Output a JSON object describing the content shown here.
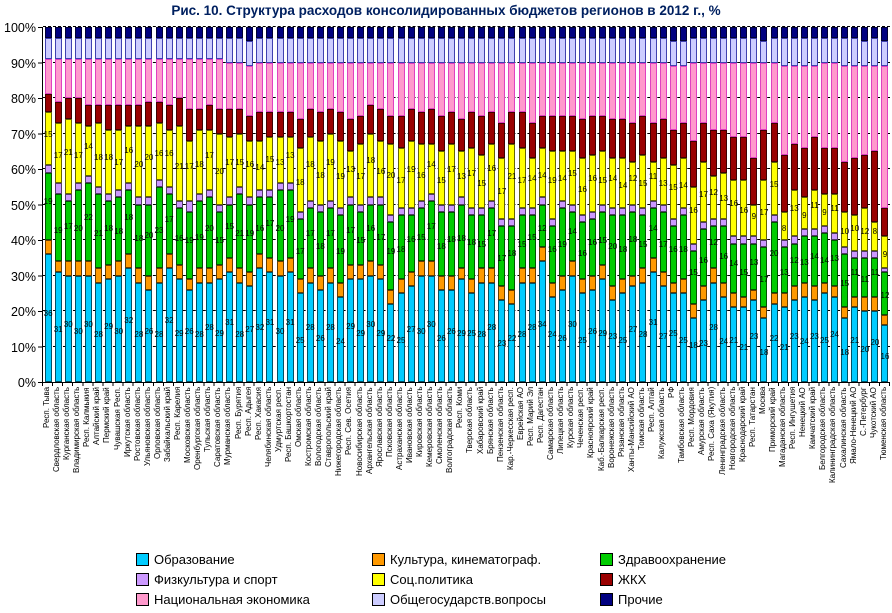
{
  "title": "Рис. 10. Структура расходов консолидированных бюджетов регионов в 2012 г., %",
  "y_axis": {
    "ticks": [
      "0%",
      "10%",
      "20%",
      "30%",
      "40%",
      "50%",
      "60%",
      "70%",
      "80%",
      "90%",
      "100%"
    ]
  },
  "legend": [
    {
      "label": "Образование",
      "color": "#00CCFF"
    },
    {
      "label": "Культура, кинематограф.",
      "color": "#FF9900"
    },
    {
      "label": "Здравоохранение",
      "color": "#00CC00"
    },
    {
      "label": "Физкультура и спорт",
      "color": "#CC99FF"
    },
    {
      "label": "Соц.политика",
      "color": "#FFFF00"
    },
    {
      "label": "ЖКХ",
      "color": "#990000"
    },
    {
      "label": "Национальная экономика",
      "color": "#FF99CC"
    },
    {
      "label": "Общегосударств.вопросы",
      "color": "#CCCCFF"
    },
    {
      "label": "Прочие",
      "color": "#000080"
    }
  ],
  "chart_data": {
    "type": "bar",
    "stacked": true,
    "unit": "%",
    "ylim": [
      0,
      100
    ],
    "grid": true,
    "legend_position": "bottom",
    "title": "Рис. 10. Структура расходов консолидированных бюджетов регионов в 2012 г., %",
    "series_names": [
      "Образование",
      "Культура, кинематограф.",
      "Здравоохранение",
      "Физкультура и спорт",
      "Соц.политика",
      "ЖКХ",
      "Национальная экономика",
      "Общегосударств.вопросы",
      "Прочие"
    ],
    "series_colors": [
      "#00CCFF",
      "#FF9900",
      "#00CC00",
      "#CC99FF",
      "#FFFF00",
      "#990000",
      "#FF99CC",
      "#CCCCFF",
      "#000080"
    ],
    "label_series_indexes": [
      0,
      2,
      4
    ],
    "categories": [
      "Респ. Тыва",
      "Свердловская область",
      "Курганская область",
      "Владимирская область",
      "Респ. Калмыкия",
      "Алтайский край",
      "Пермский край",
      "Чувашская Респ.",
      "Иркутская область",
      "Ростовская область",
      "Ульяновская область",
      "Орловская область",
      "Забайкальский край",
      "Респ. Карелия",
      "Московская область",
      "Оренбургская область",
      "Тульская область",
      "Саратовская область",
      "Мурманская область",
      "Респ. Бурятия",
      "Респ. Адыгея",
      "Респ. Хакасия",
      "Челябинская область",
      "Удмуртская респ.",
      "Респ. Башкортостан",
      "Омская область",
      "Костромская область",
      "Вологодская область",
      "Ставропольский край",
      "Нижегородская область",
      "Респ. Сев. Осетия",
      "Новосибирская область",
      "Архангельская область",
      "Ярославская область",
      "Псковская область",
      "Астраханская область",
      "Ивановская область",
      "Кировская область",
      "Кемеровская область",
      "Смоленская область",
      "Волгоградская область",
      "Респ. Коми",
      "Тверская область",
      "Хабаровский край",
      "Брянская область",
      "Пензенская область",
      "Кар.-Черкесская респ.",
      "Еврейская АО",
      "Респ. Марий Эл",
      "Респ. Дагестан",
      "Самарская область",
      "Липецкая область",
      "Курская область",
      "Чеченская респ.",
      "Красноярский край",
      "Каб.-Балкарская респ.",
      "Воронежская область",
      "Рязанская область",
      "Ханты-Мансийский АО",
      "Томская область",
      "Респ. Алтай",
      "Калужская область",
      "РФ",
      "Тамбовская область",
      "Респ. Мордовия",
      "Амурская область",
      "Респ. Саха (Якутия)",
      "Ленинградская область",
      "Новгородская область",
      "Краснодарский край",
      "Респ. Татарстан",
      "Москва",
      "Приморский край",
      "Магаданская область",
      "Респ. Ингушетия",
      "Ненецкий АО",
      "Камчатский край",
      "Белгородская область",
      "Калининградская область",
      "Сахалинская область",
      "Ямало-Ненецкий АО",
      "С.-Петербург",
      "Чукотский АО",
      "Тюменская область"
    ],
    "values": [
      [
        36,
        4,
        19,
        2,
        15,
        5,
        10,
        6,
        3
      ],
      [
        31,
        3,
        19,
        3,
        17,
        6,
        12,
        6,
        3
      ],
      [
        30,
        4,
        17,
        2,
        21,
        6,
        11,
        6,
        3
      ],
      [
        30,
        4,
        20,
        2,
        17,
        7,
        11,
        6,
        3
      ],
      [
        30,
        4,
        22,
        2,
        14,
        6,
        13,
        6,
        3
      ],
      [
        28,
        4,
        21,
        2,
        18,
        5,
        13,
        6,
        3
      ],
      [
        29,
        4,
        18,
        2,
        18,
        7,
        13,
        6,
        3
      ],
      [
        30,
        4,
        18,
        2,
        17,
        7,
        13,
        6,
        3
      ],
      [
        32,
        4,
        18,
        2,
        16,
        6,
        13,
        6,
        3
      ],
      [
        28,
        4,
        18,
        2,
        20,
        6,
        13,
        6,
        3
      ],
      [
        26,
        4,
        20,
        2,
        20,
        7,
        12,
        6,
        3
      ],
      [
        28,
        4,
        23,
        2,
        16,
        6,
        12,
        6,
        3
      ],
      [
        32,
        4,
        17,
        2,
        16,
        7,
        13,
        6,
        3
      ],
      [
        29,
        4,
        16,
        2,
        21,
        8,
        11,
        6,
        3
      ],
      [
        26,
        3,
        19,
        3,
        17,
        9,
        14,
        6,
        3
      ],
      [
        28,
        4,
        19,
        2,
        18,
        6,
        14,
        6,
        3
      ],
      [
        28,
        4,
        20,
        2,
        17,
        7,
        13,
        6,
        3
      ],
      [
        29,
        4,
        15,
        2,
        20,
        7,
        14,
        6,
        3
      ],
      [
        31,
        4,
        15,
        2,
        17,
        8,
        13,
        7,
        3
      ],
      [
        28,
        4,
        21,
        2,
        15,
        7,
        13,
        7,
        3
      ],
      [
        27,
        4,
        19,
        2,
        16,
        7,
        14,
        7,
        4
      ],
      [
        32,
        4,
        16,
        2,
        14,
        8,
        14,
        7,
        3
      ],
      [
        31,
        4,
        17,
        2,
        15,
        7,
        14,
        7,
        3
      ],
      [
        30,
        4,
        20,
        2,
        13,
        7,
        14,
        7,
        3
      ],
      [
        31,
        4,
        19,
        2,
        13,
        7,
        14,
        7,
        3
      ],
      [
        25,
        4,
        17,
        2,
        18,
        8,
        16,
        7,
        3
      ],
      [
        28,
        4,
        17,
        2,
        18,
        8,
        13,
        7,
        3
      ],
      [
        26,
        4,
        18,
        2,
        18,
        8,
        14,
        7,
        3
      ],
      [
        28,
        4,
        17,
        2,
        19,
        7,
        13,
        7,
        3
      ],
      [
        24,
        4,
        19,
        2,
        19,
        8,
        14,
        7,
        3
      ],
      [
        29,
        4,
        17,
        2,
        13,
        9,
        16,
        7,
        3
      ],
      [
        29,
        4,
        15,
        2,
        17,
        8,
        15,
        7,
        3
      ],
      [
        30,
        4,
        16,
        2,
        18,
        8,
        12,
        7,
        3
      ],
      [
        29,
        4,
        17,
        2,
        16,
        9,
        13,
        7,
        3
      ],
      [
        22,
        4,
        19,
        2,
        20,
        8,
        15,
        7,
        3
      ],
      [
        25,
        4,
        18,
        2,
        17,
        9,
        15,
        7,
        3
      ],
      [
        27,
        4,
        16,
        2,
        19,
        9,
        13,
        7,
        3
      ],
      [
        30,
        4,
        15,
        2,
        16,
        9,
        14,
        7,
        3
      ],
      [
        30,
        4,
        17,
        2,
        14,
        10,
        13,
        7,
        3
      ],
      [
        26,
        4,
        18,
        2,
        15,
        10,
        15,
        7,
        3
      ],
      [
        26,
        4,
        18,
        2,
        17,
        9,
        14,
        7,
        3
      ],
      [
        29,
        3,
        18,
        2,
        13,
        9,
        16,
        7,
        3
      ],
      [
        25,
        4,
        18,
        2,
        17,
        10,
        14,
        7,
        3
      ],
      [
        28,
        4,
        15,
        2,
        15,
        11,
        15,
        7,
        3
      ],
      [
        28,
        4,
        17,
        2,
        16,
        9,
        14,
        7,
        3
      ],
      [
        23,
        4,
        17,
        2,
        17,
        10,
        17,
        7,
        3
      ],
      [
        22,
        4,
        18,
        2,
        21,
        9,
        14,
        7,
        3
      ],
      [
        28,
        4,
        15,
        2,
        17,
        10,
        14,
        7,
        3
      ],
      [
        28,
        4,
        15,
        2,
        14,
        10,
        17,
        7,
        3
      ],
      [
        34,
        4,
        12,
        2,
        14,
        9,
        15,
        7,
        3
      ],
      [
        24,
        4,
        16,
        2,
        19,
        10,
        15,
        7,
        3
      ],
      [
        26,
        4,
        19,
        2,
        14,
        10,
        15,
        7,
        3
      ],
      [
        30,
        4,
        14,
        2,
        15,
        10,
        15,
        7,
        3
      ],
      [
        25,
        4,
        16,
        2,
        16,
        11,
        16,
        7,
        3
      ],
      [
        26,
        4,
        16,
        2,
        16,
        11,
        15,
        7,
        3
      ],
      [
        29,
        4,
        15,
        2,
        15,
        10,
        15,
        7,
        3
      ],
      [
        23,
        4,
        20,
        2,
        14,
        11,
        16,
        7,
        3
      ],
      [
        25,
        4,
        18,
        2,
        14,
        11,
        16,
        7,
        3
      ],
      [
        27,
        3,
        18,
        2,
        12,
        11,
        17,
        7,
        3
      ],
      [
        28,
        4,
        15,
        2,
        15,
        11,
        15,
        7,
        3
      ],
      [
        31,
        4,
        14,
        2,
        11,
        11,
        17,
        7,
        3
      ],
      [
        27,
        4,
        17,
        2,
        13,
        11,
        16,
        7,
        3
      ],
      [
        25,
        3,
        16,
        2,
        15,
        10,
        18,
        7,
        4
      ],
      [
        25,
        4,
        18,
        2,
        14,
        10,
        16,
        7,
        4
      ],
      [
        18,
        4,
        15,
        2,
        16,
        13,
        22,
        7,
        3
      ],
      [
        23,
        4,
        16,
        2,
        17,
        11,
        17,
        7,
        3
      ],
      [
        28,
        4,
        12,
        2,
        12,
        13,
        19,
        7,
        3
      ],
      [
        24,
        4,
        16,
        2,
        13,
        12,
        19,
        7,
        3
      ],
      [
        21,
        4,
        14,
        2,
        16,
        12,
        21,
        7,
        3
      ],
      [
        21,
        3,
        15,
        2,
        16,
        12,
        21,
        7,
        3
      ],
      [
        23,
        3,
        13,
        2,
        9,
        13,
        27,
        7,
        3
      ],
      [
        18,
        3,
        17,
        2,
        17,
        14,
        19,
        6,
        4
      ],
      [
        22,
        3,
        20,
        2,
        15,
        11,
        17,
        7,
        3
      ],
      [
        21,
        4,
        13,
        2,
        8,
        16,
        25,
        8,
        3
      ],
      [
        23,
        4,
        12,
        2,
        13,
        13,
        22,
        8,
        3
      ],
      [
        24,
        4,
        13,
        2,
        9,
        14,
        23,
        8,
        3
      ],
      [
        23,
        4,
        14,
        2,
        11,
        15,
        20,
        8,
        3
      ],
      [
        25,
        3,
        14,
        2,
        9,
        13,
        24,
        7,
        3
      ],
      [
        24,
        3,
        13,
        2,
        11,
        13,
        24,
        7,
        3
      ],
      [
        18,
        3,
        15,
        2,
        10,
        14,
        27,
        8,
        3
      ],
      [
        21,
        3,
        11,
        2,
        10,
        16,
        26,
        8,
        3
      ],
      [
        20,
        4,
        11,
        2,
        12,
        15,
        25,
        7,
        4
      ],
      [
        20,
        4,
        11,
        2,
        8,
        20,
        24,
        8,
        3
      ],
      [
        16,
        3,
        12,
        1,
        9,
        8,
        40,
        7,
        4
      ]
    ]
  }
}
